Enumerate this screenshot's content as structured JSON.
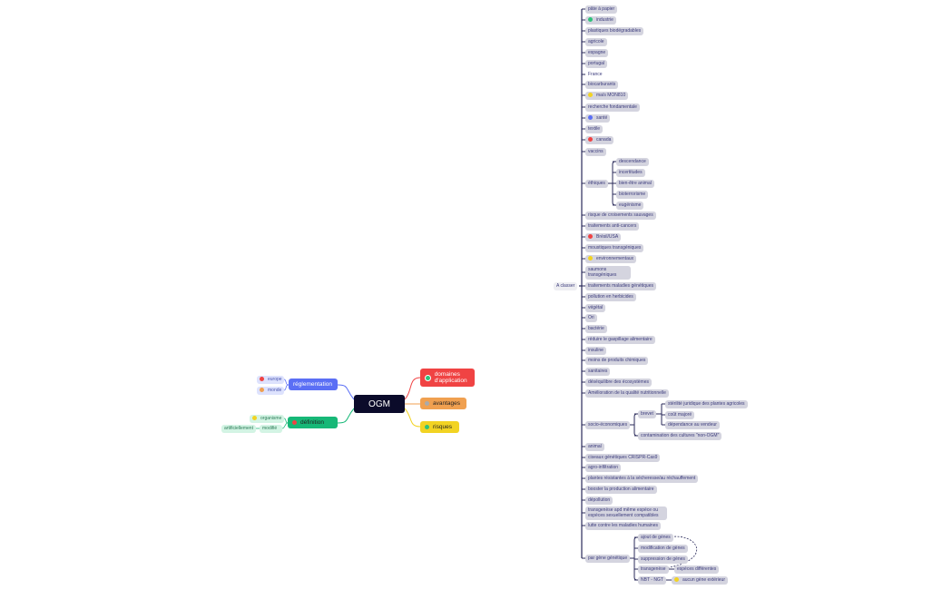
{
  "center": {
    "label": "OGM"
  },
  "branches": {
    "domaines": {
      "label": "domaines d'application",
      "color": "#f04343",
      "icon": "green-circle"
    },
    "avantages": {
      "label": "avantages",
      "color": "#f0a050",
      "icon": "grey-circle"
    },
    "risques": {
      "label": "risques",
      "color": "#f2d323",
      "icon": "green-circle"
    },
    "reglementation": {
      "label": "réglementation",
      "color": "#5b6ff5",
      "children": [
        {
          "label": "europe",
          "icon": "red-circle"
        },
        {
          "label": "monde",
          "icon": "orange-circle"
        }
      ]
    },
    "definition": {
      "label": "définition",
      "color": "#17b877",
      "icon": "red-circle",
      "children": [
        {
          "label": "organisme",
          "icon": "yellow-circle"
        },
        {
          "label": "modifié"
        },
        {
          "label": "artificiellement"
        }
      ]
    }
  },
  "classer": {
    "label": "A classer",
    "items": [
      {
        "label": "pâte à papier"
      },
      {
        "label": "industrie",
        "icon": "#2fc27a"
      },
      {
        "label": "plastiques biodégradables"
      },
      {
        "label": "agricole"
      },
      {
        "label": "espagne"
      },
      {
        "label": "portugal"
      },
      {
        "label": "France",
        "plain": true
      },
      {
        "label": "biocarburants"
      },
      {
        "label": "maïs MON810",
        "icon": "#f2d323"
      },
      {
        "label": "recherche fondamentale"
      },
      {
        "label": "santé",
        "icon": "#5b6ff5"
      },
      {
        "label": "textile"
      },
      {
        "label": "canada",
        "icon": "#f04343"
      },
      {
        "label": "vaccins"
      },
      {
        "label": "éthiques",
        "children": [
          {
            "label": "descendance"
          },
          {
            "label": "incertitudes"
          },
          {
            "label": "bien-être animal"
          },
          {
            "label": "bioterrorisme"
          },
          {
            "label": "eugénisme"
          }
        ]
      },
      {
        "label": "risque de croisements sauvages"
      },
      {
        "label": "traitements anti-cancers"
      },
      {
        "label": "Brésil/USA",
        "icon": "#f04343"
      },
      {
        "label": "moustiques transgéniques"
      },
      {
        "label": "environnementaux",
        "icon": "#f2d323"
      },
      {
        "label": "saumons transgéniques",
        "two": true
      },
      {
        "label": "traitements maladies génétiques"
      },
      {
        "label": "pollution en herbicides"
      },
      {
        "label": "végétal"
      },
      {
        "label": "Ori"
      },
      {
        "label": "bactérie"
      },
      {
        "label": "réduire le gaspillage alimentaire"
      },
      {
        "label": "insuline"
      },
      {
        "label": "moins de produits chimiques"
      },
      {
        "label": "sanitaires"
      },
      {
        "label": "déséquilibre des écosystèmes"
      },
      {
        "label": "Amélioration de la qualité nutritionnelle"
      },
      {
        "label": "socio-économiques",
        "children": [
          {
            "label": "brevet",
            "children": [
              {
                "label": "stérilité juridique des plantes agricoles"
              },
              {
                "label": "coût majoré"
              },
              {
                "label": "dépendance au vendeur"
              }
            ]
          },
          {
            "label": "contamination des cultures \"non-OGM\""
          }
        ]
      },
      {
        "label": "animal"
      },
      {
        "label": "ciseaux génétiques CRISPR-Cas9"
      },
      {
        "label": "agro-infiltration"
      },
      {
        "label": "plantes résistantes à la sécheresse/au réchauffement"
      },
      {
        "label": "booster la production alimentaire"
      },
      {
        "label": "dépollution"
      },
      {
        "label": "transgenèse apd même espèce ou espèces sexuellement compatibles",
        "two": true
      },
      {
        "label": "lutte contre les maladies humaines"
      },
      {
        "label": "par gène génétique",
        "children": [
          {
            "label": "ajout de gènes"
          },
          {
            "label": "modification de gènes"
          },
          {
            "label": "suppression de gènes"
          },
          {
            "label": "transgenèse",
            "children": [
              {
                "label": "espèces différentes"
              }
            ]
          },
          {
            "label": "NBT - NGT",
            "children": [
              {
                "label": "aucun gène extérieur",
                "icon": "#f2d323"
              }
            ]
          }
        ]
      }
    ]
  }
}
